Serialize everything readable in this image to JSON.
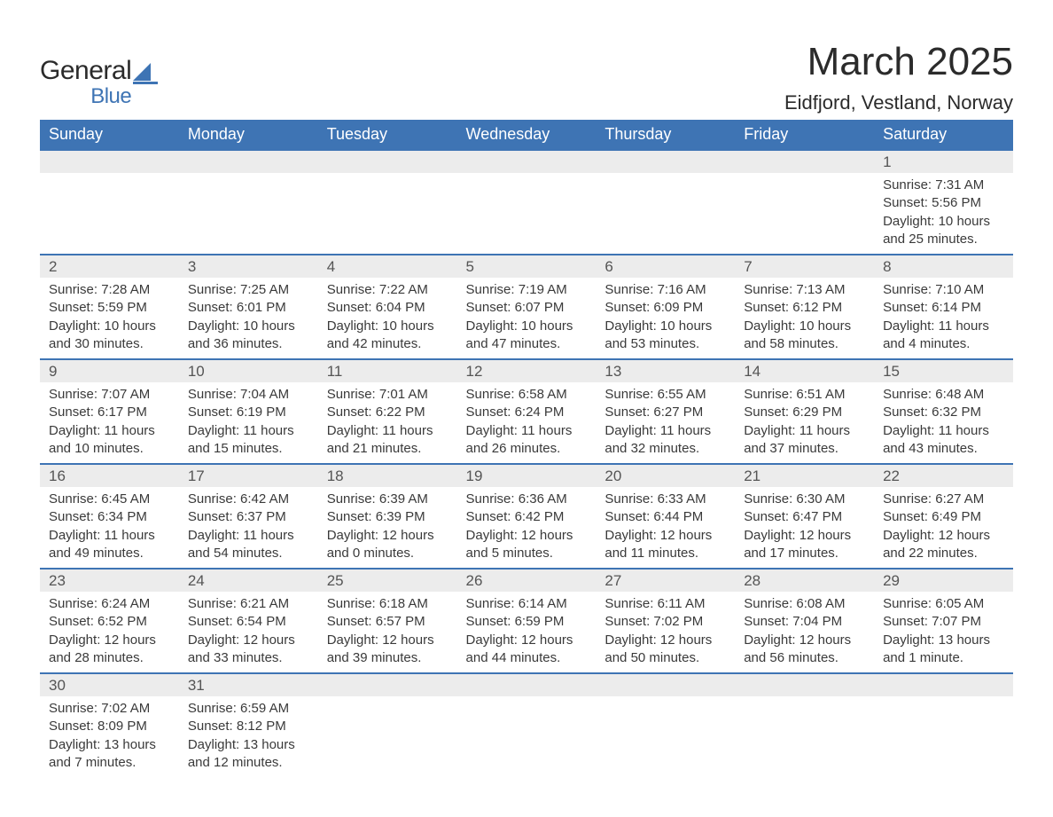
{
  "logo": {
    "text1": "General",
    "text2": "Blue",
    "icon_color": "#3e74b4"
  },
  "title": "March 2025",
  "location": "Eidfjord, Vestland, Norway",
  "header_bg": "#3e74b4",
  "header_fg": "#ffffff",
  "daynum_bg": "#ececec",
  "row_border": "#3e74b4",
  "text_color": "#3a3a3a",
  "day_names": [
    "Sunday",
    "Monday",
    "Tuesday",
    "Wednesday",
    "Thursday",
    "Friday",
    "Saturday"
  ],
  "weeks": [
    [
      null,
      null,
      null,
      null,
      null,
      null,
      {
        "n": "1",
        "sr": "7:31 AM",
        "ss": "5:56 PM",
        "dl": "10 hours and 25 minutes."
      }
    ],
    [
      {
        "n": "2",
        "sr": "7:28 AM",
        "ss": "5:59 PM",
        "dl": "10 hours and 30 minutes."
      },
      {
        "n": "3",
        "sr": "7:25 AM",
        "ss": "6:01 PM",
        "dl": "10 hours and 36 minutes."
      },
      {
        "n": "4",
        "sr": "7:22 AM",
        "ss": "6:04 PM",
        "dl": "10 hours and 42 minutes."
      },
      {
        "n": "5",
        "sr": "7:19 AM",
        "ss": "6:07 PM",
        "dl": "10 hours and 47 minutes."
      },
      {
        "n": "6",
        "sr": "7:16 AM",
        "ss": "6:09 PM",
        "dl": "10 hours and 53 minutes."
      },
      {
        "n": "7",
        "sr": "7:13 AM",
        "ss": "6:12 PM",
        "dl": "10 hours and 58 minutes."
      },
      {
        "n": "8",
        "sr": "7:10 AM",
        "ss": "6:14 PM",
        "dl": "11 hours and 4 minutes."
      }
    ],
    [
      {
        "n": "9",
        "sr": "7:07 AM",
        "ss": "6:17 PM",
        "dl": "11 hours and 10 minutes."
      },
      {
        "n": "10",
        "sr": "7:04 AM",
        "ss": "6:19 PM",
        "dl": "11 hours and 15 minutes."
      },
      {
        "n": "11",
        "sr": "7:01 AM",
        "ss": "6:22 PM",
        "dl": "11 hours and 21 minutes."
      },
      {
        "n": "12",
        "sr": "6:58 AM",
        "ss": "6:24 PM",
        "dl": "11 hours and 26 minutes."
      },
      {
        "n": "13",
        "sr": "6:55 AM",
        "ss": "6:27 PM",
        "dl": "11 hours and 32 minutes."
      },
      {
        "n": "14",
        "sr": "6:51 AM",
        "ss": "6:29 PM",
        "dl": "11 hours and 37 minutes."
      },
      {
        "n": "15",
        "sr": "6:48 AM",
        "ss": "6:32 PM",
        "dl": "11 hours and 43 minutes."
      }
    ],
    [
      {
        "n": "16",
        "sr": "6:45 AM",
        "ss": "6:34 PM",
        "dl": "11 hours and 49 minutes."
      },
      {
        "n": "17",
        "sr": "6:42 AM",
        "ss": "6:37 PM",
        "dl": "11 hours and 54 minutes."
      },
      {
        "n": "18",
        "sr": "6:39 AM",
        "ss": "6:39 PM",
        "dl": "12 hours and 0 minutes."
      },
      {
        "n": "19",
        "sr": "6:36 AM",
        "ss": "6:42 PM",
        "dl": "12 hours and 5 minutes."
      },
      {
        "n": "20",
        "sr": "6:33 AM",
        "ss": "6:44 PM",
        "dl": "12 hours and 11 minutes."
      },
      {
        "n": "21",
        "sr": "6:30 AM",
        "ss": "6:47 PM",
        "dl": "12 hours and 17 minutes."
      },
      {
        "n": "22",
        "sr": "6:27 AM",
        "ss": "6:49 PM",
        "dl": "12 hours and 22 minutes."
      }
    ],
    [
      {
        "n": "23",
        "sr": "6:24 AM",
        "ss": "6:52 PM",
        "dl": "12 hours and 28 minutes."
      },
      {
        "n": "24",
        "sr": "6:21 AM",
        "ss": "6:54 PM",
        "dl": "12 hours and 33 minutes."
      },
      {
        "n": "25",
        "sr": "6:18 AM",
        "ss": "6:57 PM",
        "dl": "12 hours and 39 minutes."
      },
      {
        "n": "26",
        "sr": "6:14 AM",
        "ss": "6:59 PM",
        "dl": "12 hours and 44 minutes."
      },
      {
        "n": "27",
        "sr": "6:11 AM",
        "ss": "7:02 PM",
        "dl": "12 hours and 50 minutes."
      },
      {
        "n": "28",
        "sr": "6:08 AM",
        "ss": "7:04 PM",
        "dl": "12 hours and 56 minutes."
      },
      {
        "n": "29",
        "sr": "6:05 AM",
        "ss": "7:07 PM",
        "dl": "13 hours and 1 minute."
      }
    ],
    [
      {
        "n": "30",
        "sr": "7:02 AM",
        "ss": "8:09 PM",
        "dl": "13 hours and 7 minutes."
      },
      {
        "n": "31",
        "sr": "6:59 AM",
        "ss": "8:12 PM",
        "dl": "13 hours and 12 minutes."
      },
      null,
      null,
      null,
      null,
      null
    ]
  ],
  "labels": {
    "sunrise": "Sunrise: ",
    "sunset": "Sunset: ",
    "daylight": "Daylight: "
  }
}
